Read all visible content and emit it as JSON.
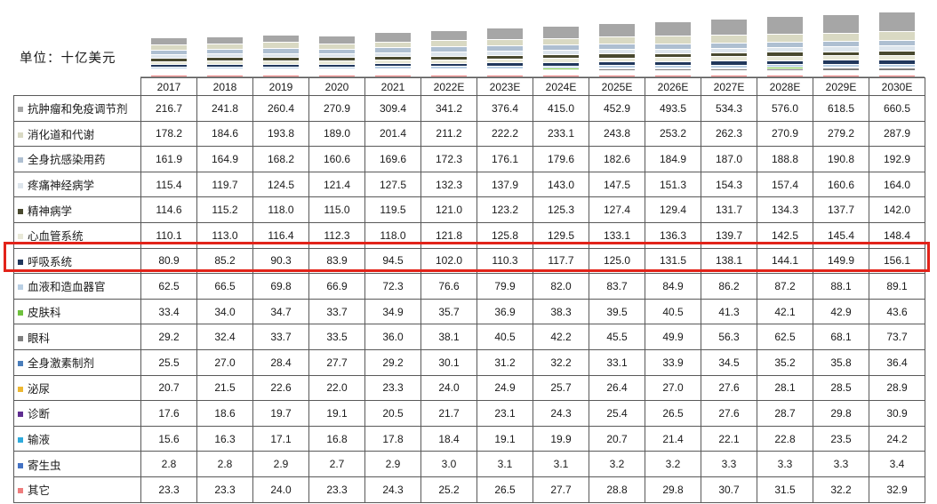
{
  "unit_label": "单位：十亿美元",
  "highlight": {
    "row_label": "呼吸系统",
    "row_index": 6,
    "color": "#e2231a"
  },
  "chart_data": {
    "type": "bar",
    "subtype": "stacked-column",
    "title": "",
    "unit": "十亿美元",
    "legend_position": "left-table-column",
    "grid": false,
    "value_format": "one-decimal",
    "stack_order": "top-to-bottom-matches-table-rows",
    "categories": [
      "2017",
      "2018",
      "2019",
      "2020",
      "2021",
      "2022E",
      "2023E",
      "2024E",
      "2025E",
      "2026E",
      "2027E",
      "2028E",
      "2029E",
      "2030E"
    ],
    "series": [
      {
        "name": "抗肿瘤和免疫调节剂",
        "color": "#a6a6a6",
        "values": [
          216.7,
          241.8,
          260.4,
          270.9,
          309.4,
          341.2,
          376.4,
          415.0,
          452.9,
          493.5,
          534.3,
          576.0,
          618.5,
          660.5
        ]
      },
      {
        "name": "消化道和代谢",
        "color": "#d9d9c3",
        "values": [
          178.2,
          184.6,
          193.8,
          189.0,
          201.4,
          211.2,
          222.2,
          233.1,
          243.8,
          253.2,
          262.3,
          270.9,
          279.2,
          287.9
        ]
      },
      {
        "name": "全身抗感染用药",
        "color": "#aebfd1",
        "values": [
          161.9,
          164.9,
          168.2,
          160.6,
          169.6,
          172.3,
          176.1,
          179.6,
          182.6,
          184.9,
          187.0,
          188.8,
          190.8,
          192.9
        ]
      },
      {
        "name": "疼痛神经病学",
        "color": "#dde5ec",
        "values": [
          115.4,
          119.7,
          124.5,
          121.4,
          127.5,
          132.3,
          137.9,
          143.0,
          147.5,
          151.3,
          154.3,
          157.4,
          160.6,
          164.0
        ]
      },
      {
        "name": "精神病学",
        "color": "#49492f",
        "values": [
          114.6,
          115.2,
          118.0,
          115.0,
          119.5,
          121.0,
          123.2,
          125.3,
          127.4,
          129.4,
          131.7,
          134.3,
          137.7,
          142.0
        ]
      },
      {
        "name": "心血管系统",
        "color": "#e9e9d8",
        "values": [
          110.1,
          113.0,
          116.4,
          112.3,
          118.0,
          121.8,
          125.8,
          129.5,
          133.1,
          136.3,
          139.7,
          142.5,
          145.4,
          148.4
        ]
      },
      {
        "name": "呼吸系统",
        "color": "#20375c",
        "values": [
          80.9,
          85.2,
          90.3,
          83.9,
          94.5,
          102.0,
          110.3,
          117.7,
          125.0,
          131.5,
          138.1,
          144.1,
          149.9,
          156.1
        ]
      },
      {
        "name": "血液和造血器官",
        "color": "#b9cfe4",
        "values": [
          62.5,
          66.5,
          69.8,
          66.9,
          72.3,
          76.6,
          79.9,
          82.0,
          83.7,
          84.9,
          86.2,
          87.2,
          88.1,
          89.1
        ]
      },
      {
        "name": "皮肤科",
        "color": "#6fc13e",
        "values": [
          33.4,
          34.0,
          34.7,
          33.7,
          34.9,
          35.7,
          36.9,
          38.3,
          39.5,
          40.5,
          41.3,
          42.1,
          42.9,
          43.6
        ]
      },
      {
        "name": "眼科",
        "color": "#7f7f7f",
        "values": [
          29.2,
          32.4,
          33.7,
          33.5,
          36.0,
          38.1,
          40.5,
          42.2,
          45.5,
          49.9,
          56.3,
          62.5,
          68.1,
          73.7
        ]
      },
      {
        "name": "全身激素制剂",
        "color": "#4a7ebb",
        "values": [
          25.5,
          27.0,
          28.4,
          27.7,
          29.2,
          30.1,
          31.2,
          32.2,
          33.1,
          33.9,
          34.5,
          35.2,
          35.8,
          36.4
        ]
      },
      {
        "name": "泌尿",
        "color": "#edb832",
        "values": [
          20.7,
          21.5,
          22.6,
          22.0,
          23.3,
          24.0,
          24.9,
          25.7,
          26.4,
          27.0,
          27.6,
          28.1,
          28.5,
          28.9
        ]
      },
      {
        "name": "诊断",
        "color": "#5f2d91",
        "values": [
          17.6,
          18.6,
          19.7,
          19.1,
          20.5,
          21.7,
          23.1,
          24.3,
          25.4,
          26.5,
          27.6,
          28.7,
          29.8,
          30.9
        ]
      },
      {
        "name": "输液",
        "color": "#2eaadc",
        "values": [
          15.6,
          16.3,
          17.1,
          16.8,
          17.8,
          18.4,
          19.1,
          19.9,
          20.7,
          21.4,
          22.1,
          22.8,
          23.5,
          24.2
        ]
      },
      {
        "name": "寄生虫",
        "color": "#4472c4",
        "values": [
          2.8,
          2.8,
          2.9,
          2.7,
          2.9,
          3.0,
          3.1,
          3.1,
          3.2,
          3.2,
          3.3,
          3.3,
          3.3,
          3.4
        ]
      },
      {
        "name": "其它",
        "color": "#ee7d7d",
        "values": [
          23.3,
          23.3,
          24.0,
          23.3,
          24.3,
          25.2,
          26.5,
          27.7,
          28.8,
          29.8,
          30.7,
          31.5,
          32.2,
          32.9
        ]
      }
    ]
  }
}
